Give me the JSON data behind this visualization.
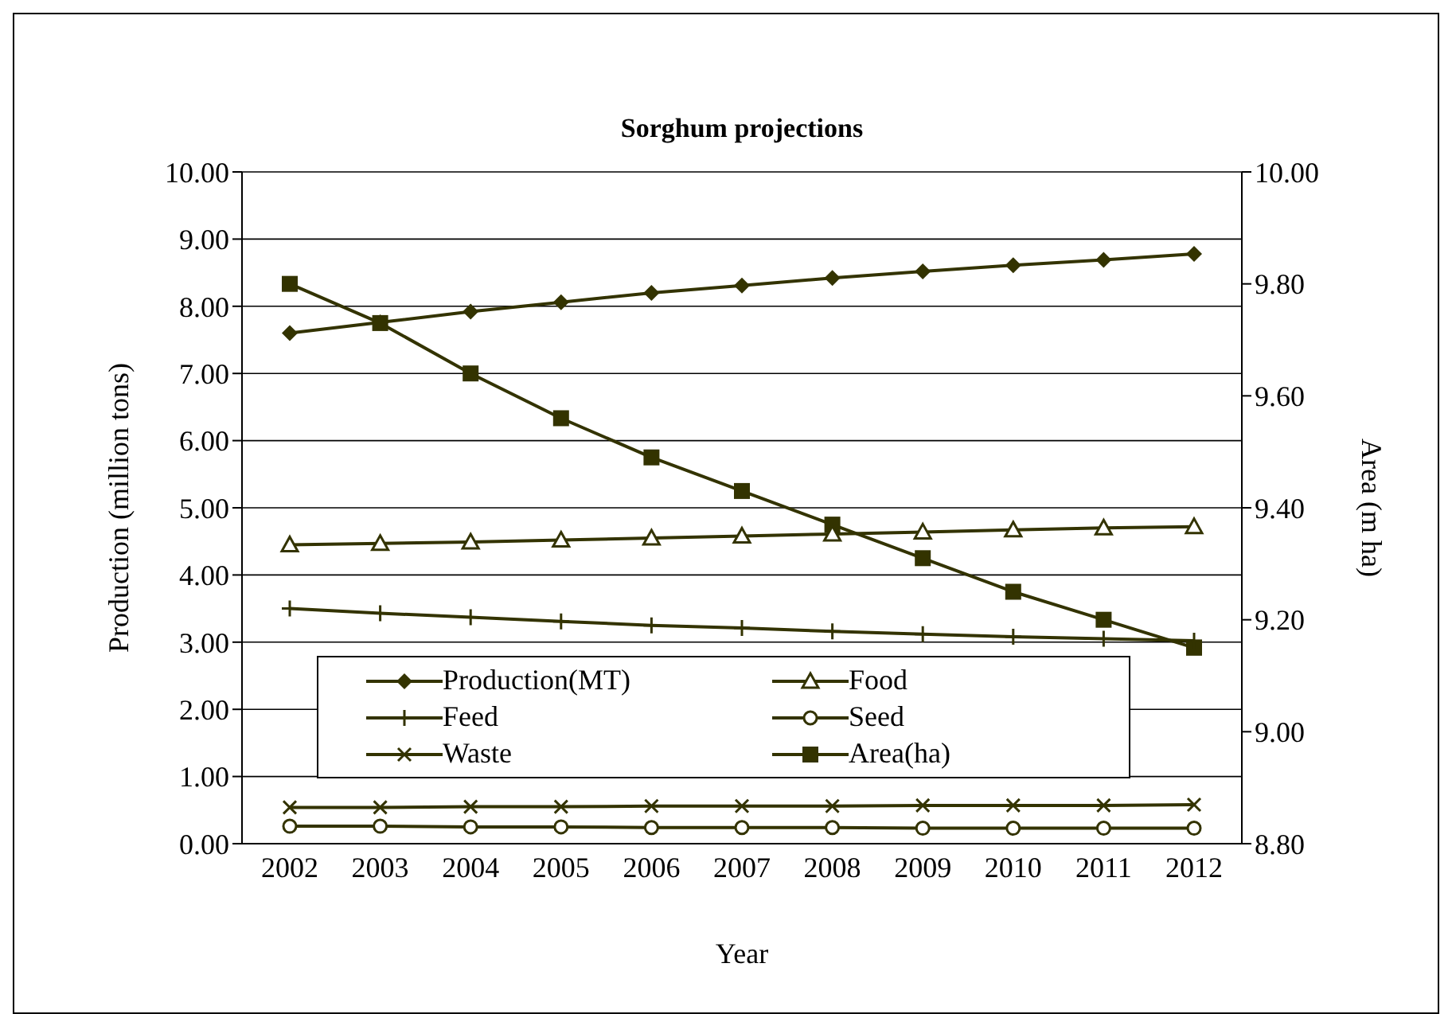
{
  "chart_data": {
    "type": "line",
    "title": "Sorghum projections",
    "xlabel": "Year",
    "ylabel": "Production (million tons)",
    "y2label": "Area (m ha)",
    "categories": [
      "2002",
      "2003",
      "2004",
      "2005",
      "2006",
      "2007",
      "2008",
      "2009",
      "2010",
      "2011",
      "2012"
    ],
    "series": [
      {
        "name": "Production(MT)",
        "color": "#333300",
        "marker": "diamond",
        "values": [
          7.6,
          7.76,
          7.92,
          8.06,
          8.2,
          8.31,
          8.42,
          8.52,
          8.61,
          8.69,
          8.78
        ]
      },
      {
        "name": "Food",
        "color": "#333300",
        "marker": "triangle",
        "values": [
          4.45,
          4.47,
          4.49,
          4.52,
          4.55,
          4.58,
          4.61,
          4.64,
          4.67,
          4.7,
          4.72
        ]
      },
      {
        "name": "Feed",
        "color": "#333300",
        "marker": "cross",
        "values": [
          3.5,
          3.43,
          3.37,
          3.31,
          3.25,
          3.21,
          3.16,
          3.12,
          3.08,
          3.05,
          3.02
        ]
      },
      {
        "name": "Seed",
        "color": "#333300",
        "marker": "circle",
        "values": [
          0.26,
          0.26,
          0.25,
          0.25,
          0.24,
          0.24,
          0.24,
          0.23,
          0.23,
          0.23,
          0.23
        ]
      },
      {
        "name": "Waste",
        "color": "#333300",
        "marker": "x",
        "values": [
          0.54,
          0.54,
          0.55,
          0.55,
          0.56,
          0.56,
          0.56,
          0.57,
          0.57,
          0.57,
          0.58
        ]
      },
      {
        "name": "Area(ha)",
        "color": "#333300",
        "marker": "square",
        "axis": "y2",
        "values": [
          9.8,
          9.73,
          9.64,
          9.56,
          9.49,
          9.43,
          9.37,
          9.31,
          9.25,
          9.2,
          9.15
        ]
      }
    ],
    "ylim": [
      0,
      10
    ],
    "yticks": [
      {
        "value": 0,
        "label": "0.00"
      },
      {
        "value": 1,
        "label": "1.00"
      },
      {
        "value": 2,
        "label": "2.00"
      },
      {
        "value": 3,
        "label": "3.00"
      },
      {
        "value": 4,
        "label": "4.00"
      },
      {
        "value": 5,
        "label": "5.00"
      },
      {
        "value": 6,
        "label": "6.00"
      },
      {
        "value": 7,
        "label": "7.00"
      },
      {
        "value": 8,
        "label": "8.00"
      },
      {
        "value": 9,
        "label": "9.00"
      },
      {
        "value": 10,
        "label": "10.00"
      }
    ],
    "y2lim": [
      8.8,
      10
    ],
    "y2ticks": [
      {
        "value": 8.8,
        "label": "8.80"
      },
      {
        "value": 9,
        "label": "9.00"
      },
      {
        "value": 9.2,
        "label": "9.20"
      },
      {
        "value": 9.4,
        "label": "9.40"
      },
      {
        "value": 9.6,
        "label": "9.60"
      },
      {
        "value": 9.8,
        "label": "9.80"
      },
      {
        "value": 10,
        "label": "10.00"
      }
    ],
    "grid": "y",
    "legend": "bottom",
    "line_style": "solid"
  }
}
